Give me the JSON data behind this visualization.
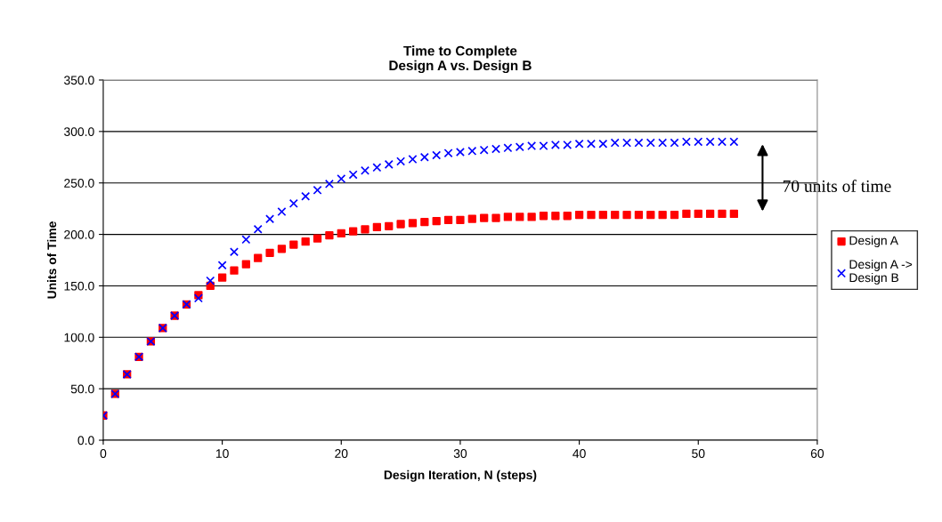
{
  "chart_data": {
    "type": "scatter",
    "title": "Time to Complete\nDesign A vs. Design B",
    "xlabel": "Design Iteration, N (steps)",
    "ylabel": "Units of Time",
    "x": [
      0,
      1,
      2,
      3,
      4,
      5,
      6,
      7,
      8,
      9,
      10,
      11,
      12,
      13,
      14,
      15,
      16,
      17,
      18,
      19,
      20,
      21,
      22,
      23,
      24,
      25,
      26,
      27,
      28,
      29,
      30,
      31,
      32,
      33,
      34,
      35,
      36,
      37,
      38,
      39,
      40,
      41,
      42,
      43,
      44,
      45,
      46,
      47,
      48,
      49,
      50,
      51,
      52,
      53
    ],
    "series": [
      {
        "name": "Design A",
        "color": "#ff0000",
        "marker": "square",
        "values": [
          24,
          45,
          64,
          81,
          96,
          109,
          121,
          132,
          141,
          150,
          158,
          165,
          171,
          177,
          182,
          186,
          190,
          193,
          196,
          199,
          201,
          203,
          205,
          207,
          208,
          210,
          211,
          212,
          213,
          214,
          214,
          215,
          216,
          216,
          217,
          217,
          217,
          218,
          218,
          218,
          219,
          219,
          219,
          219,
          219,
          219,
          219,
          219,
          219,
          220,
          220,
          220,
          220,
          220
        ]
      },
      {
        "name": "Design A ->\nDesign B",
        "color": "#0000ff",
        "marker": "cross",
        "values": [
          24,
          45,
          64,
          81,
          96,
          109,
          121,
          132,
          138,
          155,
          170,
          183,
          195,
          205,
          215,
          222,
          230,
          237,
          243,
          249,
          254,
          258,
          262,
          265,
          268,
          271,
          273,
          275,
          277,
          279,
          280,
          281,
          282,
          283,
          284,
          285,
          286,
          286,
          287,
          287,
          288,
          288,
          288,
          289,
          289,
          289,
          289,
          289,
          289,
          290,
          290,
          290,
          290,
          290
        ]
      }
    ],
    "xlim": [
      0,
      60
    ],
    "xticks": [
      0,
      10,
      20,
      30,
      40,
      50,
      60
    ],
    "ylim": [
      0,
      350
    ],
    "yticks": [
      {
        "value": 0,
        "label": "0.0"
      },
      {
        "value": 50,
        "label": "50.0"
      },
      {
        "value": 100,
        "label": "100.0"
      },
      {
        "value": 150,
        "label": "150.0"
      },
      {
        "value": 200,
        "label": "200.0"
      },
      {
        "value": 250,
        "label": "250.0"
      },
      {
        "value": 300,
        "label": "300.0"
      },
      {
        "value": 350,
        "label": "350.0"
      }
    ],
    "annotations": [
      "70 units of time"
    ],
    "grid": "y",
    "legend": "right"
  }
}
